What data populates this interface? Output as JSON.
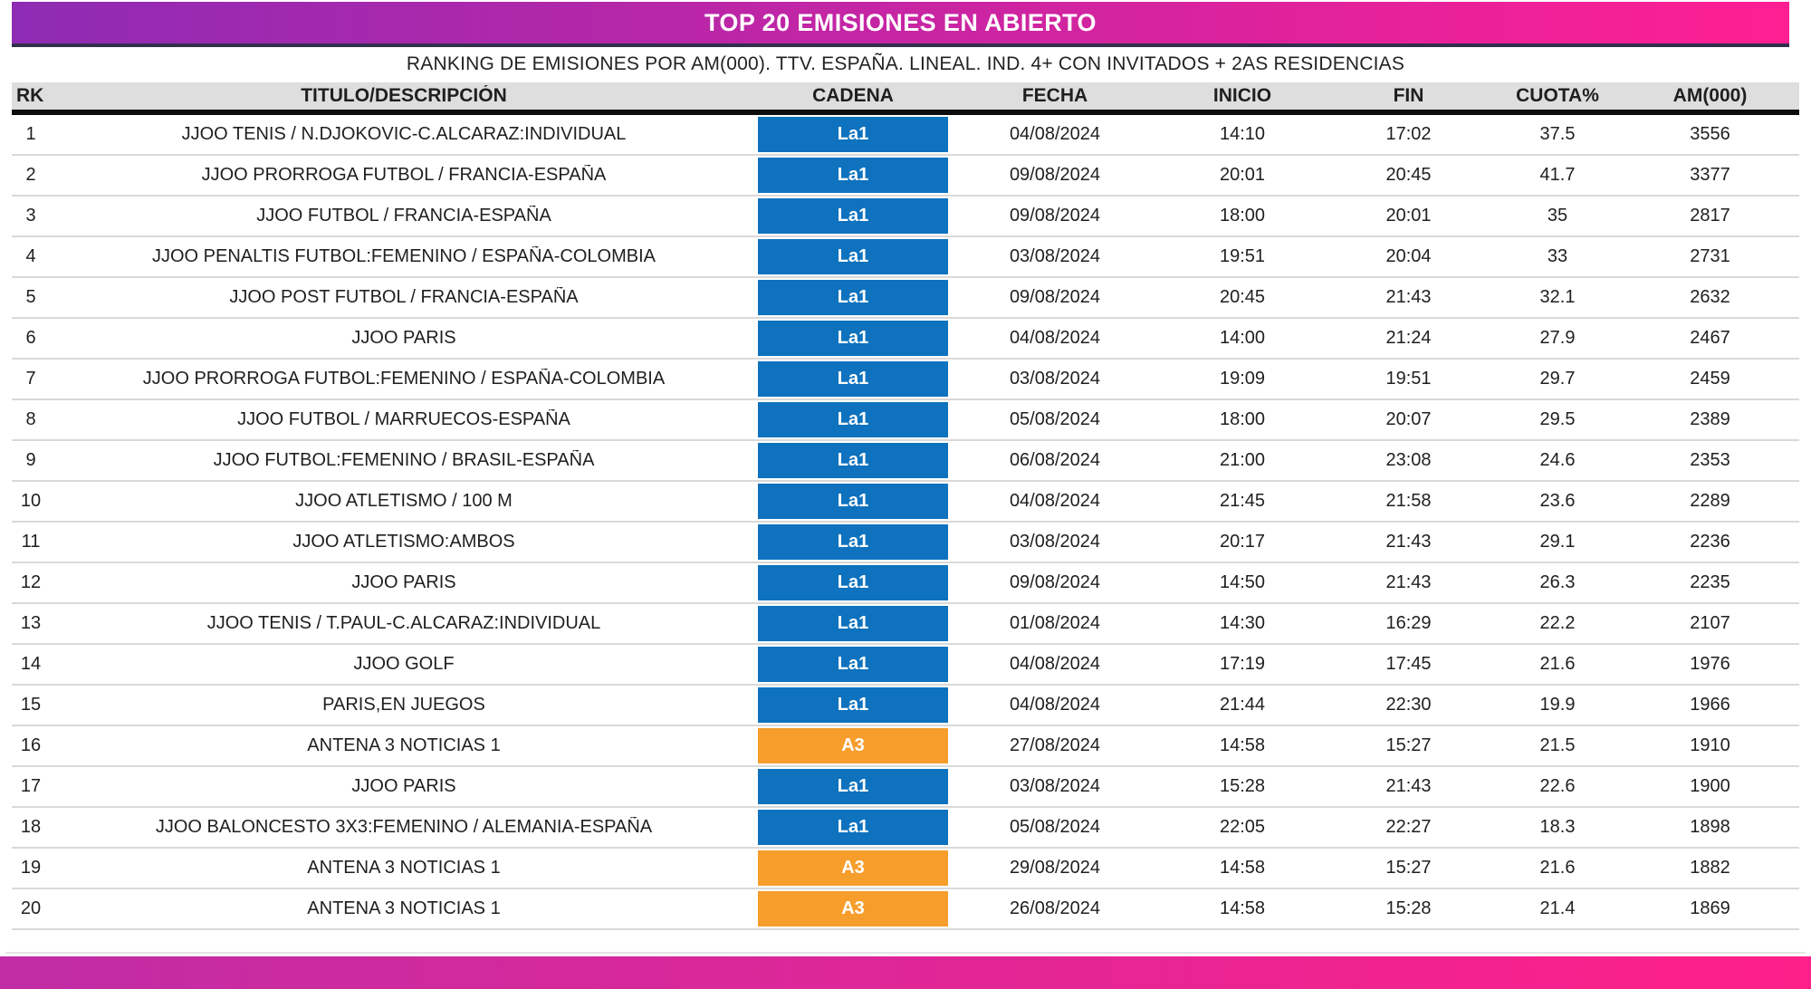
{
  "header": {
    "title": "TOP 20 EMISIONES EN ABIERTO",
    "subtitle": "RANKING DE EMISIONES POR AM(000). TTV. ESPAÑA. LINEAL. IND. 4+ CON INVITADOS + 2AS RESIDENCIAS"
  },
  "chart_data": {
    "type": "table",
    "title": "TOP 20 EMISIONES EN ABIERTO",
    "subtitle": "RANKING DE EMISIONES POR AM(000). TTV. ESPAÑA. LINEAL. IND. 4+ CON INVITADOS + 2AS RESIDENCIAS",
    "columns": [
      "RK",
      "TITULO/DESCRIPCIÓN",
      "CADENA",
      "FECHA",
      "INICIO",
      "FIN",
      "CUOTA%",
      "AM(000)"
    ],
    "rows": [
      {
        "rk": "1",
        "titulo": "JJOO TENIS / N.DJOKOVIC-C.ALCARAZ:INDIVIDUAL",
        "cadena": "La1",
        "fecha": "04/08/2024",
        "inicio": "14:10",
        "fin": "17:02",
        "cuota": "37.5",
        "am": "3556"
      },
      {
        "rk": "2",
        "titulo": "JJOO PRORROGA FUTBOL / FRANCIA-ESPAÑA",
        "cadena": "La1",
        "fecha": "09/08/2024",
        "inicio": "20:01",
        "fin": "20:45",
        "cuota": "41.7",
        "am": "3377"
      },
      {
        "rk": "3",
        "titulo": "JJOO FUTBOL / FRANCIA-ESPAÑA",
        "cadena": "La1",
        "fecha": "09/08/2024",
        "inicio": "18:00",
        "fin": "20:01",
        "cuota": "35",
        "am": "2817"
      },
      {
        "rk": "4",
        "titulo": "JJOO PENALTIS FUTBOL:FEMENINO / ESPAÑA-COLOMBIA",
        "cadena": "La1",
        "fecha": "03/08/2024",
        "inicio": "19:51",
        "fin": "20:04",
        "cuota": "33",
        "am": "2731"
      },
      {
        "rk": "5",
        "titulo": "JJOO POST FUTBOL / FRANCIA-ESPAÑA",
        "cadena": "La1",
        "fecha": "09/08/2024",
        "inicio": "20:45",
        "fin": "21:43",
        "cuota": "32.1",
        "am": "2632"
      },
      {
        "rk": "6",
        "titulo": "JJOO PARIS",
        "cadena": "La1",
        "fecha": "04/08/2024",
        "inicio": "14:00",
        "fin": "21:24",
        "cuota": "27.9",
        "am": "2467"
      },
      {
        "rk": "7",
        "titulo": "JJOO PRORROGA FUTBOL:FEMENINO / ESPAÑA-COLOMBIA",
        "cadena": "La1",
        "fecha": "03/08/2024",
        "inicio": "19:09",
        "fin": "19:51",
        "cuota": "29.7",
        "am": "2459"
      },
      {
        "rk": "8",
        "titulo": "JJOO FUTBOL / MARRUECOS-ESPAÑA",
        "cadena": "La1",
        "fecha": "05/08/2024",
        "inicio": "18:00",
        "fin": "20:07",
        "cuota": "29.5",
        "am": "2389"
      },
      {
        "rk": "9",
        "titulo": "JJOO FUTBOL:FEMENINO / BRASIL-ESPAÑA",
        "cadena": "La1",
        "fecha": "06/08/2024",
        "inicio": "21:00",
        "fin": "23:08",
        "cuota": "24.6",
        "am": "2353"
      },
      {
        "rk": "10",
        "titulo": "JJOO ATLETISMO / 100 M",
        "cadena": "La1",
        "fecha": "04/08/2024",
        "inicio": "21:45",
        "fin": "21:58",
        "cuota": "23.6",
        "am": "2289"
      },
      {
        "rk": "11",
        "titulo": "JJOO ATLETISMO:AMBOS",
        "cadena": "La1",
        "fecha": "03/08/2024",
        "inicio": "20:17",
        "fin": "21:43",
        "cuota": "29.1",
        "am": "2236"
      },
      {
        "rk": "12",
        "titulo": "JJOO PARIS",
        "cadena": "La1",
        "fecha": "09/08/2024",
        "inicio": "14:50",
        "fin": "21:43",
        "cuota": "26.3",
        "am": "2235"
      },
      {
        "rk": "13",
        "titulo": "JJOO TENIS / T.PAUL-C.ALCARAZ:INDIVIDUAL",
        "cadena": "La1",
        "fecha": "01/08/2024",
        "inicio": "14:30",
        "fin": "16:29",
        "cuota": "22.2",
        "am": "2107"
      },
      {
        "rk": "14",
        "titulo": "JJOO GOLF",
        "cadena": "La1",
        "fecha": "04/08/2024",
        "inicio": "17:19",
        "fin": "17:45",
        "cuota": "21.6",
        "am": "1976"
      },
      {
        "rk": "15",
        "titulo": "PARIS,EN JUEGOS",
        "cadena": "La1",
        "fecha": "04/08/2024",
        "inicio": "21:44",
        "fin": "22:30",
        "cuota": "19.9",
        "am": "1966"
      },
      {
        "rk": "16",
        "titulo": "ANTENA 3 NOTICIAS 1",
        "cadena": "A3",
        "fecha": "27/08/2024",
        "inicio": "14:58",
        "fin": "15:27",
        "cuota": "21.5",
        "am": "1910"
      },
      {
        "rk": "17",
        "titulo": "JJOO PARIS",
        "cadena": "La1",
        "fecha": "03/08/2024",
        "inicio": "15:28",
        "fin": "21:43",
        "cuota": "22.6",
        "am": "1900"
      },
      {
        "rk": "18",
        "titulo": "JJOO BALONCESTO 3X3:FEMENINO / ALEMANIA-ESPAÑA",
        "cadena": "La1",
        "fecha": "05/08/2024",
        "inicio": "22:05",
        "fin": "22:27",
        "cuota": "18.3",
        "am": "1898"
      },
      {
        "rk": "19",
        "titulo": "ANTENA 3 NOTICIAS 1",
        "cadena": "A3",
        "fecha": "29/08/2024",
        "inicio": "14:58",
        "fin": "15:27",
        "cuota": "21.6",
        "am": "1882"
      },
      {
        "rk": "20",
        "titulo": "ANTENA 3 NOTICIAS 1",
        "cadena": "A3",
        "fecha": "26/08/2024",
        "inicio": "14:58",
        "fin": "15:28",
        "cuota": "21.4",
        "am": "1869"
      }
    ]
  },
  "colors": {
    "channels": {
      "La1": "#0E72BE",
      "A3": "#F69D2C"
    },
    "header_gradient": [
      "#8E2BB4",
      "#FF1F93"
    ],
    "footer_gradient": [
      "#C02DA5",
      "#FF2089"
    ],
    "header_row_bg": "#DEDEDE",
    "header_underline": "#322F4D",
    "thead_border": "#0D0D0D",
    "row_separator": "#D9D9D9"
  }
}
